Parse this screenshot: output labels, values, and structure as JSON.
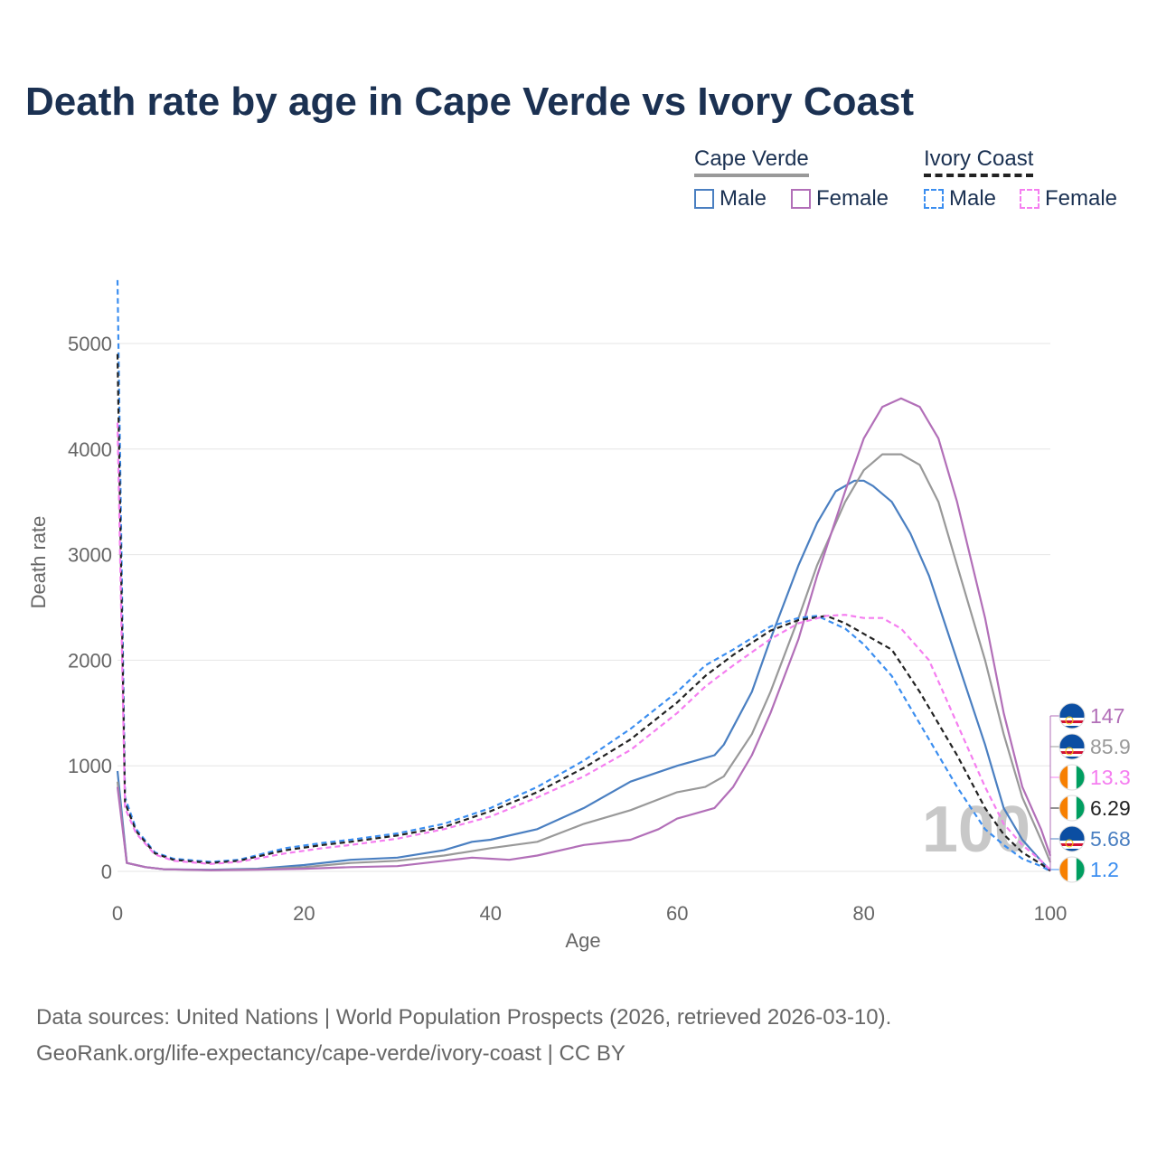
{
  "title": "Death rate by age in Cape Verde vs Ivory Coast",
  "legend": {
    "groups": [
      {
        "name": "Cape Verde",
        "style": "solid"
      },
      {
        "name": "Ivory Coast",
        "style": "dashed"
      }
    ],
    "items": [
      {
        "label": "Male",
        "color": "#4a7fc1",
        "style": "solid"
      },
      {
        "label": "Female",
        "color": "#b26fb8",
        "style": "solid"
      },
      {
        "label": "Male",
        "color": "#3b8ef0",
        "style": "dashed"
      },
      {
        "label": "Female",
        "color": "#f57ef0",
        "style": "dashed"
      }
    ]
  },
  "footer": {
    "line1": "Data sources: United Nations | World Population Prospects (2026, retrieved 2026-03-10).",
    "line2": "GeoRank.org/life-expectancy/cape-verde/ivory-coast | CC BY"
  },
  "watermark": "100",
  "chart_data": {
    "type": "line",
    "title": "Death rate by age in Cape Verde vs Ivory Coast",
    "xlabel": "Age",
    "ylabel": "Death rate",
    "xlim": [
      0,
      100
    ],
    "ylim": [
      0,
      5000
    ],
    "xticks": [
      0,
      20,
      40,
      60,
      80,
      100
    ],
    "yticks": [
      0,
      1000,
      2000,
      3000,
      4000,
      5000
    ],
    "grid": true,
    "series": [
      {
        "name": "Cape Verde Male",
        "color": "#4a7fc1",
        "dashed": false,
        "end_label": "5.68",
        "flag": "cape-verde",
        "points": [
          [
            0,
            950
          ],
          [
            1,
            80
          ],
          [
            3,
            40
          ],
          [
            5,
            20
          ],
          [
            10,
            15
          ],
          [
            15,
            25
          ],
          [
            20,
            60
          ],
          [
            25,
            110
          ],
          [
            30,
            130
          ],
          [
            35,
            200
          ],
          [
            38,
            280
          ],
          [
            40,
            300
          ],
          [
            45,
            400
          ],
          [
            50,
            600
          ],
          [
            55,
            850
          ],
          [
            60,
            1000
          ],
          [
            62,
            1050
          ],
          [
            64,
            1100
          ],
          [
            65,
            1200
          ],
          [
            68,
            1700
          ],
          [
            70,
            2200
          ],
          [
            73,
            2900
          ],
          [
            75,
            3300
          ],
          [
            77,
            3600
          ],
          [
            79,
            3700
          ],
          [
            80,
            3700
          ],
          [
            81,
            3650
          ],
          [
            83,
            3500
          ],
          [
            85,
            3200
          ],
          [
            87,
            2800
          ],
          [
            90,
            2000
          ],
          [
            93,
            1200
          ],
          [
            95,
            600
          ],
          [
            97,
            300
          ],
          [
            99,
            100
          ],
          [
            100,
            6
          ]
        ]
      },
      {
        "name": "Cape Verde Both",
        "color": "#999999",
        "dashed": false,
        "end_label": "85.9",
        "flag": "cape-verde",
        "points": [
          [
            0,
            850
          ],
          [
            1,
            80
          ],
          [
            3,
            40
          ],
          [
            5,
            20
          ],
          [
            10,
            12
          ],
          [
            15,
            20
          ],
          [
            20,
            40
          ],
          [
            25,
            80
          ],
          [
            30,
            100
          ],
          [
            35,
            150
          ],
          [
            40,
            220
          ],
          [
            45,
            280
          ],
          [
            50,
            450
          ],
          [
            55,
            580
          ],
          [
            60,
            750
          ],
          [
            63,
            800
          ],
          [
            65,
            900
          ],
          [
            68,
            1300
          ],
          [
            70,
            1700
          ],
          [
            73,
            2400
          ],
          [
            75,
            2900
          ],
          [
            78,
            3500
          ],
          [
            80,
            3800
          ],
          [
            82,
            3950
          ],
          [
            84,
            3950
          ],
          [
            86,
            3850
          ],
          [
            88,
            3500
          ],
          [
            90,
            2900
          ],
          [
            93,
            2000
          ],
          [
            95,
            1300
          ],
          [
            97,
            700
          ],
          [
            99,
            300
          ],
          [
            100,
            86
          ]
        ]
      },
      {
        "name": "Cape Verde Female",
        "color": "#b26fb8",
        "dashed": false,
        "end_label": "147",
        "flag": "cape-verde",
        "points": [
          [
            0,
            800
          ],
          [
            1,
            80
          ],
          [
            3,
            40
          ],
          [
            5,
            20
          ],
          [
            10,
            10
          ],
          [
            15,
            15
          ],
          [
            20,
            25
          ],
          [
            25,
            40
          ],
          [
            30,
            50
          ],
          [
            35,
            100
          ],
          [
            38,
            130
          ],
          [
            40,
            120
          ],
          [
            42,
            110
          ],
          [
            45,
            150
          ],
          [
            50,
            250
          ],
          [
            55,
            300
          ],
          [
            58,
            400
          ],
          [
            60,
            500
          ],
          [
            62,
            550
          ],
          [
            64,
            600
          ],
          [
            66,
            800
          ],
          [
            68,
            1100
          ],
          [
            70,
            1500
          ],
          [
            73,
            2200
          ],
          [
            75,
            2800
          ],
          [
            78,
            3600
          ],
          [
            80,
            4100
          ],
          [
            82,
            4400
          ],
          [
            84,
            4480
          ],
          [
            86,
            4400
          ],
          [
            88,
            4100
          ],
          [
            90,
            3500
          ],
          [
            93,
            2400
          ],
          [
            95,
            1500
          ],
          [
            97,
            800
          ],
          [
            99,
            400
          ],
          [
            100,
            147
          ]
        ]
      },
      {
        "name": "Ivory Coast Male",
        "color": "#3b8ef0",
        "dashed": true,
        "end_label": "1.2",
        "flag": "ivory-coast",
        "points": [
          [
            0,
            5600
          ],
          [
            0.8,
            700
          ],
          [
            2,
            400
          ],
          [
            4,
            180
          ],
          [
            6,
            120
          ],
          [
            10,
            90
          ],
          [
            13,
            110
          ],
          [
            18,
            220
          ],
          [
            22,
            270
          ],
          [
            25,
            300
          ],
          [
            30,
            360
          ],
          [
            35,
            450
          ],
          [
            40,
            600
          ],
          [
            45,
            800
          ],
          [
            50,
            1050
          ],
          [
            55,
            1350
          ],
          [
            60,
            1700
          ],
          [
            63,
            1950
          ],
          [
            66,
            2100
          ],
          [
            70,
            2320
          ],
          [
            73,
            2400
          ],
          [
            75,
            2420
          ],
          [
            78,
            2300
          ],
          [
            80,
            2150
          ],
          [
            83,
            1850
          ],
          [
            86,
            1400
          ],
          [
            90,
            800
          ],
          [
            93,
            400
          ],
          [
            95,
            250
          ],
          [
            97,
            120
          ],
          [
            99,
            50
          ],
          [
            100,
            1.2
          ]
        ]
      },
      {
        "name": "Ivory Coast Both",
        "color": "#222222",
        "dashed": true,
        "end_label": "6.29",
        "flag": "ivory-coast",
        "points": [
          [
            0,
            4900
          ],
          [
            0.8,
            650
          ],
          [
            2,
            380
          ],
          [
            4,
            170
          ],
          [
            6,
            110
          ],
          [
            10,
            80
          ],
          [
            13,
            100
          ],
          [
            18,
            200
          ],
          [
            22,
            250
          ],
          [
            25,
            280
          ],
          [
            30,
            340
          ],
          [
            35,
            420
          ],
          [
            40,
            570
          ],
          [
            45,
            750
          ],
          [
            50,
            980
          ],
          [
            55,
            1250
          ],
          [
            60,
            1600
          ],
          [
            63,
            1850
          ],
          [
            66,
            2050
          ],
          [
            70,
            2280
          ],
          [
            73,
            2380
          ],
          [
            76,
            2420
          ],
          [
            78,
            2350
          ],
          [
            80,
            2250
          ],
          [
            83,
            2100
          ],
          [
            86,
            1700
          ],
          [
            90,
            1100
          ],
          [
            93,
            600
          ],
          [
            95,
            350
          ],
          [
            97,
            180
          ],
          [
            99,
            70
          ],
          [
            100,
            6.29
          ]
        ]
      },
      {
        "name": "Ivory Coast Female",
        "color": "#f57ef0",
        "dashed": true,
        "end_label": "13.3",
        "flag": "ivory-coast",
        "points": [
          [
            0,
            4250
          ],
          [
            0.8,
            600
          ],
          [
            2,
            360
          ],
          [
            4,
            160
          ],
          [
            6,
            100
          ],
          [
            10,
            70
          ],
          [
            13,
            90
          ],
          [
            18,
            170
          ],
          [
            22,
            220
          ],
          [
            25,
            250
          ],
          [
            30,
            310
          ],
          [
            35,
            400
          ],
          [
            40,
            520
          ],
          [
            45,
            700
          ],
          [
            50,
            900
          ],
          [
            55,
            1150
          ],
          [
            60,
            1500
          ],
          [
            63,
            1750
          ],
          [
            66,
            1950
          ],
          [
            70,
            2200
          ],
          [
            73,
            2350
          ],
          [
            76,
            2420
          ],
          [
            78,
            2430
          ],
          [
            80,
            2400
          ],
          [
            82,
            2400
          ],
          [
            84,
            2300
          ],
          [
            87,
            2000
          ],
          [
            90,
            1400
          ],
          [
            93,
            800
          ],
          [
            95,
            450
          ],
          [
            97,
            250
          ],
          [
            99,
            100
          ],
          [
            100,
            13.3
          ]
        ]
      }
    ]
  }
}
